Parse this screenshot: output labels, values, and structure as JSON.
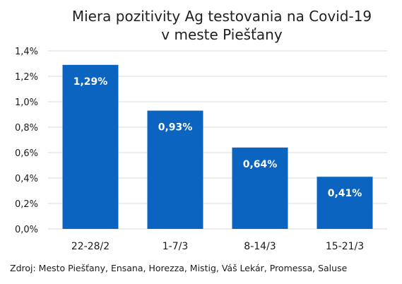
{
  "chart_data": {
    "type": "bar",
    "title": "Miera pozitivity Ag testovania na Covid-19",
    "subtitle": "v meste Piešťany",
    "categories": [
      "22-28/2",
      "1-7/3",
      "8-14/3",
      "15-21/3"
    ],
    "values": [
      1.29,
      0.93,
      0.64,
      0.41
    ],
    "value_labels": [
      "1,29%",
      "0,93%",
      "0,64%",
      "0,41%"
    ],
    "ylim": [
      0,
      1.4
    ],
    "yticks": [
      0,
      0.2,
      0.4,
      0.6,
      0.8,
      1.0,
      1.2,
      1.4
    ],
    "ytick_labels": [
      "0,0%",
      "0,2%",
      "0,4%",
      "0,6%",
      "0,8%",
      "1,0%",
      "1,2%",
      "1,4%"
    ],
    "xlabel": "",
    "ylabel": "",
    "grid": true,
    "bar_color": "#0a64c0",
    "label_color": "#ffffff",
    "grid_color": "#d9d9d9"
  },
  "source_note": "Zdroj: Mesto Piešťany, Ensana, Horezza, Mistig, Váš Lekár, Promessa, Saluse"
}
